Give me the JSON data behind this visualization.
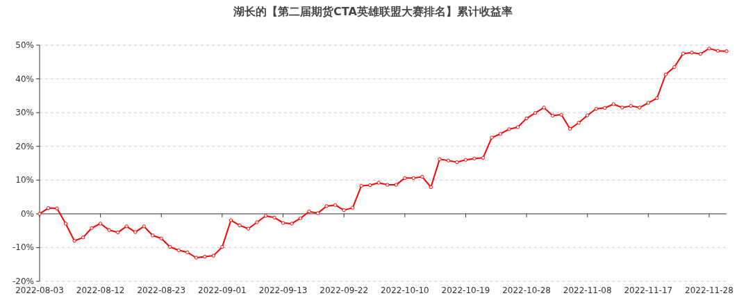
{
  "chart_data": {
    "type": "line",
    "title": "湖长的【第二届期货CTA英雄联盟大赛排名】累计收益率",
    "categories": [
      "2022-08-03",
      null,
      null,
      null,
      null,
      null,
      null,
      "2022-08-12",
      null,
      null,
      null,
      null,
      null,
      null,
      "2022-08-23",
      null,
      null,
      null,
      null,
      null,
      null,
      "2022-09-01",
      null,
      null,
      null,
      null,
      null,
      null,
      "2022-09-13",
      null,
      null,
      null,
      null,
      null,
      null,
      "2022-09-22",
      null,
      null,
      null,
      null,
      null,
      null,
      "2022-10-10",
      null,
      null,
      null,
      null,
      null,
      null,
      "2022-10-19",
      null,
      null,
      null,
      null,
      null,
      null,
      "2022-10-28",
      null,
      null,
      null,
      null,
      null,
      null,
      "2022-11-08",
      null,
      null,
      null,
      null,
      null,
      null,
      "2022-11-17",
      null,
      null,
      null,
      null,
      null,
      null,
      "2022-11-28",
      null,
      null
    ],
    "values": [
      0,
      1.7,
      1.6,
      -2.9,
      -8.0,
      -7.0,
      -4.2,
      -2.9,
      -4.8,
      -5.5,
      -3.7,
      -5.4,
      -3.7,
      -6.4,
      -7.3,
      -9.8,
      -10.8,
      -11.4,
      -13.0,
      -12.7,
      -12.4,
      -9.8,
      -1.9,
      -3.4,
      -4.4,
      -2.5,
      -0.6,
      -1.1,
      -2.7,
      -2.9,
      -1.3,
      0.7,
      0.2,
      2.3,
      2.6,
      1.1,
      1.8,
      8.3,
      8.5,
      9.2,
      8.6,
      8.6,
      10.6,
      10.6,
      11.0,
      7.9,
      16.2,
      15.8,
      15.3,
      16.0,
      16.4,
      16.6,
      22.6,
      23.7,
      25.1,
      25.7,
      28.3,
      29.9,
      31.5,
      29.1,
      29.4,
      25.2,
      27.0,
      29.2,
      31.1,
      31.4,
      32.5,
      31.5,
      32.0,
      31.5,
      32.9,
      34.3,
      41.3,
      43.5,
      47.5,
      47.8,
      47.4,
      49.0,
      48.3,
      48.2
    ],
    "color": "#ff0000",
    "marker": "circle",
    "grid": "y",
    "ylim": [
      -20,
      50
    ],
    "yticks": [
      {
        "value": -20,
        "label": "-20%"
      },
      {
        "value": -10,
        "label": "-10%"
      },
      {
        "value": 0,
        "label": "0%"
      },
      {
        "value": 10,
        "label": "10%"
      },
      {
        "value": 20,
        "label": "20%"
      },
      {
        "value": 30,
        "label": "30%"
      },
      {
        "value": 40,
        "label": "40%"
      },
      {
        "value": 50,
        "label": "50%"
      }
    ]
  }
}
